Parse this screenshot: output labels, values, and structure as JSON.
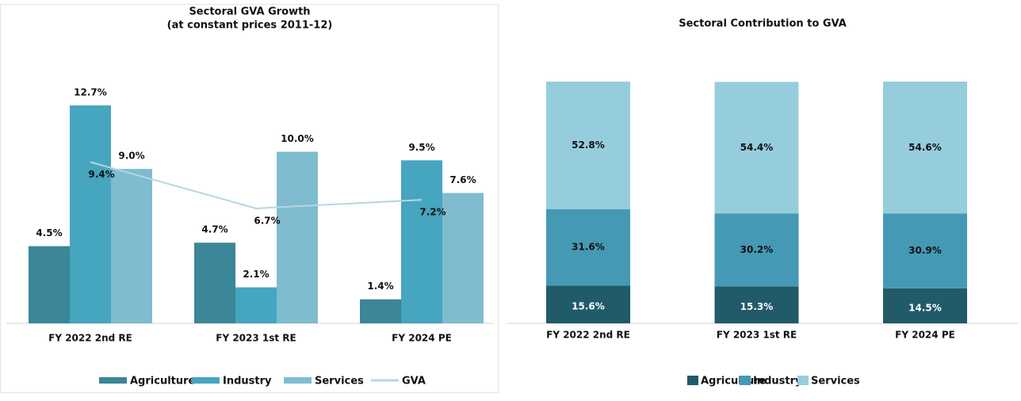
{
  "chart_data": [
    {
      "type": "bar",
      "title": "Sectoral GVA Growth",
      "subtitle": "(at constant prices 2011-12)",
      "categories": [
        "FY 2022 2nd RE",
        "FY 2023 1st RE",
        "FY 2024 PE"
      ],
      "series": [
        {
          "name": "Agriculture",
          "color": "#3b8698",
          "values": [
            4.5,
            4.7,
            1.4
          ],
          "value_labels": [
            "4.5%",
            "4.7%",
            "1.4%"
          ]
        },
        {
          "name": "Industry",
          "color": "#46a5bf",
          "values": [
            12.7,
            2.1,
            9.5
          ],
          "value_labels": [
            "12.7%",
            "2.1%",
            "9.5%"
          ]
        },
        {
          "name": "Services",
          "color": "#7fbcd0",
          "values": [
            9.0,
            10.0,
            7.6
          ],
          "value_labels": [
            "9.0%",
            "10.0%",
            "7.6%"
          ]
        },
        {
          "name": "GVA",
          "type": "line",
          "color": "#b8d6e0",
          "values": [
            9.4,
            6.7,
            7.2
          ],
          "value_labels": [
            "9.4%",
            "6.7%",
            "7.2%"
          ]
        }
      ]
    },
    {
      "type": "stacked_bar",
      "title": "Sectoral Contribution to GVA",
      "categories": [
        "FY 2022 2nd RE",
        "FY 2023 1st RE",
        "FY 2024 PE"
      ],
      "series": [
        {
          "name": "Agriculture",
          "color": "#215a68",
          "values": [
            15.6,
            15.3,
            14.5
          ],
          "value_labels": [
            "15.6%",
            "15.3%",
            "14.5%"
          ]
        },
        {
          "name": "Industry",
          "color": "#4599b5",
          "values": [
            31.6,
            30.2,
            30.9
          ],
          "value_labels": [
            "31.6%",
            "30.2%",
            "30.9%"
          ]
        },
        {
          "name": "Services",
          "color": "#96cddd",
          "values": [
            52.8,
            54.4,
            54.6
          ],
          "value_labels": [
            "52.8%",
            "54.4%",
            "54.6%"
          ]
        }
      ]
    }
  ]
}
